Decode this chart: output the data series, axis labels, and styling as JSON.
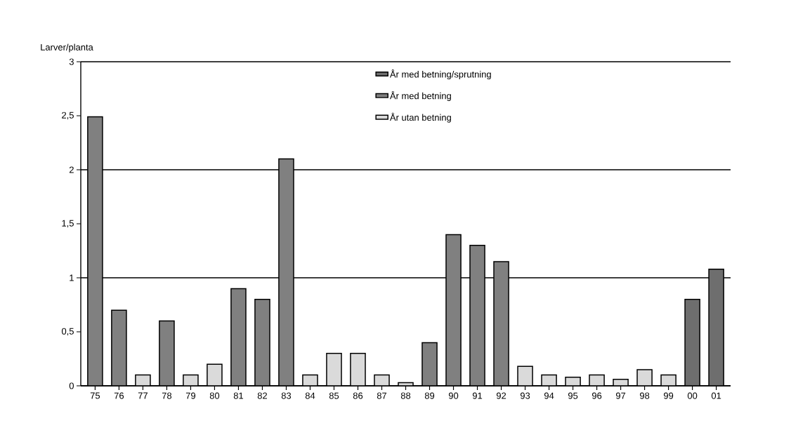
{
  "chart_data": {
    "type": "bar",
    "ylabel": "Larver/planta",
    "categories": [
      "75",
      "76",
      "77",
      "78",
      "79",
      "80",
      "81",
      "82",
      "83",
      "84",
      "85",
      "86",
      "87",
      "88",
      "89",
      "90",
      "91",
      "92",
      "93",
      "94",
      "95",
      "96",
      "97",
      "98",
      "99",
      "00",
      "01"
    ],
    "series": [
      {
        "name": "År med betning/sprutning",
        "color": "#6e6e6e",
        "values": [
          null,
          null,
          null,
          null,
          null,
          null,
          null,
          null,
          null,
          null,
          null,
          null,
          null,
          null,
          null,
          null,
          null,
          null,
          null,
          null,
          null,
          null,
          null,
          null,
          null,
          0.8,
          1.08
        ]
      },
      {
        "name": "År med betning",
        "color": "#808080",
        "values": [
          2.49,
          0.7,
          null,
          0.6,
          null,
          null,
          0.9,
          0.8,
          2.1,
          null,
          null,
          null,
          null,
          null,
          0.4,
          1.4,
          1.3,
          1.15,
          null,
          null,
          null,
          null,
          null,
          null,
          null,
          null,
          null
        ]
      },
      {
        "name": "År utan betning",
        "color": "#dadada",
        "values": [
          null,
          null,
          0.1,
          null,
          0.1,
          0.2,
          null,
          null,
          null,
          0.1,
          0.3,
          0.3,
          0.1,
          0.03,
          null,
          null,
          null,
          null,
          0.18,
          0.1,
          0.08,
          0.1,
          0.06,
          0.15,
          0.1,
          null,
          null
        ]
      }
    ],
    "ylim": [
      0,
      3
    ],
    "yticks": [
      0,
      {
        "value": 0.5,
        "label": "0,5"
      },
      1,
      {
        "value": 1.5,
        "label": "1,5"
      },
      2,
      {
        "value": 2.5,
        "label": "2,5"
      },
      3
    ],
    "grid": "y",
    "legend": "top right"
  }
}
